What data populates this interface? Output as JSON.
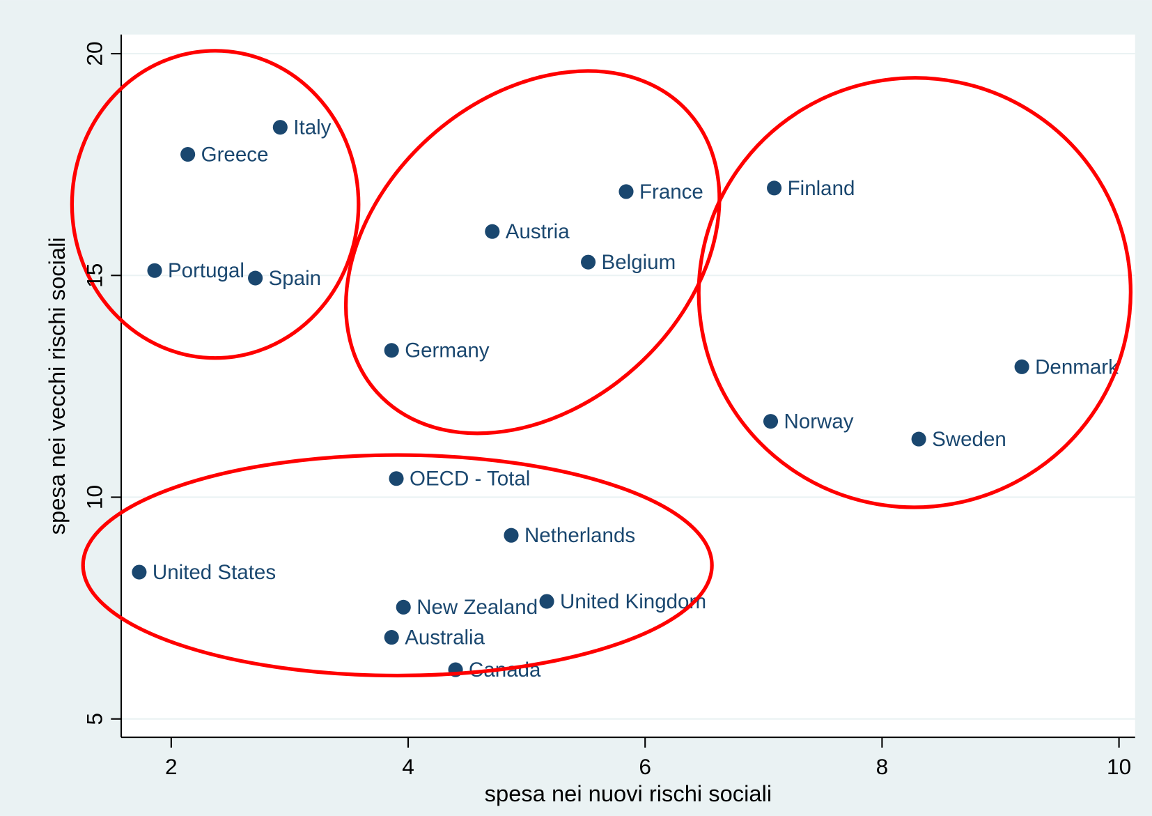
{
  "chart_data": {
    "type": "scatter",
    "xlabel": "spesa nei nuovi rischi sociali",
    "ylabel": "spesa nei vecchi rischi sociali",
    "xlim": [
      1.578,
      10.136
    ],
    "ylim": [
      4.586,
      20.43
    ],
    "xticks": [
      2,
      4,
      6,
      8,
      10
    ],
    "yticks": [
      5,
      10,
      15,
      20
    ],
    "grid": true,
    "series": [
      {
        "color": "#1a476f",
        "labels": [
          "Italy",
          "Greece",
          "Portugal",
          "Spain",
          "France",
          "Austria",
          "Belgium",
          "Germany",
          "Finland",
          "Denmark",
          "Norway",
          "Sweden",
          "OECD - Total",
          "Netherlands",
          "United States",
          "New Zealand",
          "United Kingdom",
          "Australia",
          "Canada"
        ],
        "x": [
          2.92,
          2.14,
          1.86,
          2.71,
          5.84,
          4.71,
          5.52,
          3.86,
          7.09,
          9.18,
          7.06,
          8.31,
          3.9,
          4.87,
          1.73,
          3.96,
          5.17,
          3.86,
          4.4
        ],
        "values": [
          18.34,
          17.73,
          15.11,
          14.94,
          16.89,
          15.99,
          15.3,
          13.31,
          16.97,
          12.94,
          11.71,
          11.31,
          10.42,
          9.14,
          8.31,
          7.52,
          7.65,
          6.84,
          6.11
        ]
      }
    ]
  }
}
